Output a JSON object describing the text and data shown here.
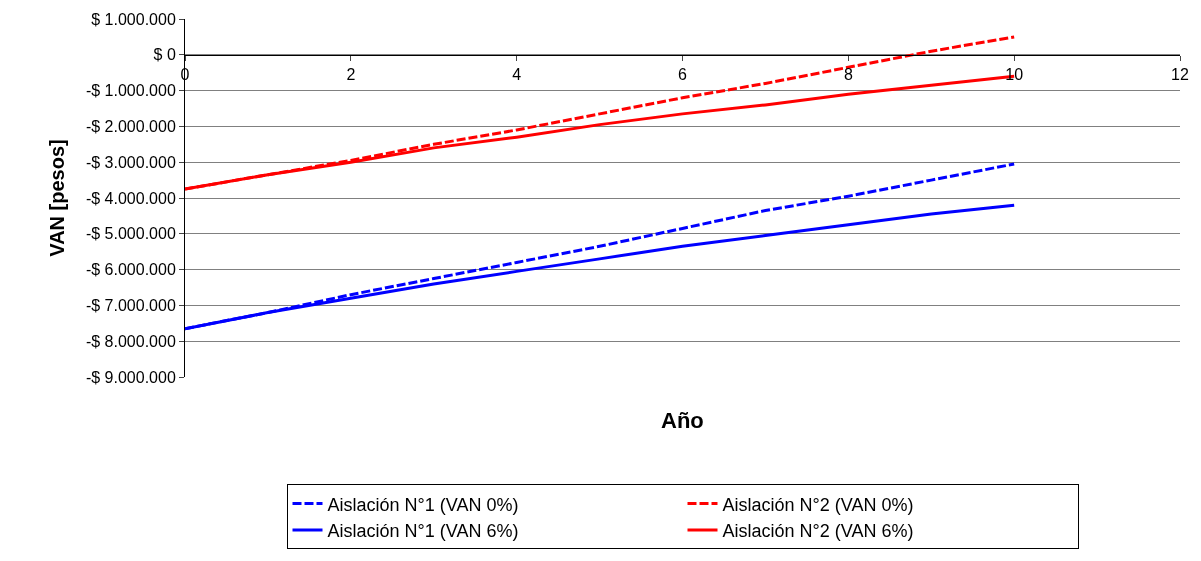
{
  "chart_data": {
    "type": "line",
    "xlabel": "Año",
    "ylabel": "VAN [pesos]",
    "x": [
      0,
      1,
      2,
      3,
      4,
      5,
      6,
      7,
      8,
      9,
      10
    ],
    "series": [
      {
        "name": "Aislación N°1 (VAN 0%)",
        "color": "#0000ff",
        "line_style": "dashed",
        "values": [
          -7650000,
          -7200000,
          -6700000,
          -6250000,
          -5800000,
          -5350000,
          -4850000,
          -4350000,
          -3950000,
          -3500000,
          -3050000
        ]
      },
      {
        "name": "Aislación N°2 (VAN 0%)",
        "color": "#ff0000",
        "line_style": "dashed",
        "values": [
          -3750000,
          -3350000,
          -2950000,
          -2500000,
          -2100000,
          -1650000,
          -1200000,
          -800000,
          -350000,
          100000,
          500000
        ]
      },
      {
        "name": "Aislación N°1 (VAN 6%)",
        "color": "#0000ff",
        "line_style": "solid",
        "values": [
          -7650000,
          -7200000,
          -6800000,
          -6400000,
          -6050000,
          -5700000,
          -5350000,
          -5050000,
          -4750000,
          -4450000,
          -4200000
        ]
      },
      {
        "name": "Aislación N°2 (VAN 6%)",
        "color": "#ff0000",
        "line_style": "solid",
        "values": [
          -3750000,
          -3350000,
          -3000000,
          -2600000,
          -2300000,
          -1950000,
          -1650000,
          -1400000,
          -1100000,
          -850000,
          -600000
        ]
      }
    ],
    "xlim": [
      0,
      12
    ],
    "xticks": [
      0,
      2,
      4,
      6,
      8,
      10,
      12
    ],
    "ylim": [
      -9000000,
      1000000
    ],
    "yticks": [
      {
        "value": 1000000,
        "label": "$ 1.000.000"
      },
      {
        "value": 0,
        "label": "$ 0"
      },
      {
        "value": -1000000,
        "label": "-$ 1.000.000"
      },
      {
        "value": -2000000,
        "label": "-$ 2.000.000"
      },
      {
        "value": -3000000,
        "label": "-$ 3.000.000"
      },
      {
        "value": -4000000,
        "label": "-$ 4.000.000"
      },
      {
        "value": -5000000,
        "label": "-$ 5.000.000"
      },
      {
        "value": -6000000,
        "label": "-$ 6.000.000"
      },
      {
        "value": -7000000,
        "label": "-$ 7.000.000"
      },
      {
        "value": -8000000,
        "label": "-$ 8.000.000"
      },
      {
        "value": -9000000,
        "label": "-$ 9.000.000"
      }
    ],
    "grid": "y",
    "legend": "bottom",
    "marker": "none"
  }
}
